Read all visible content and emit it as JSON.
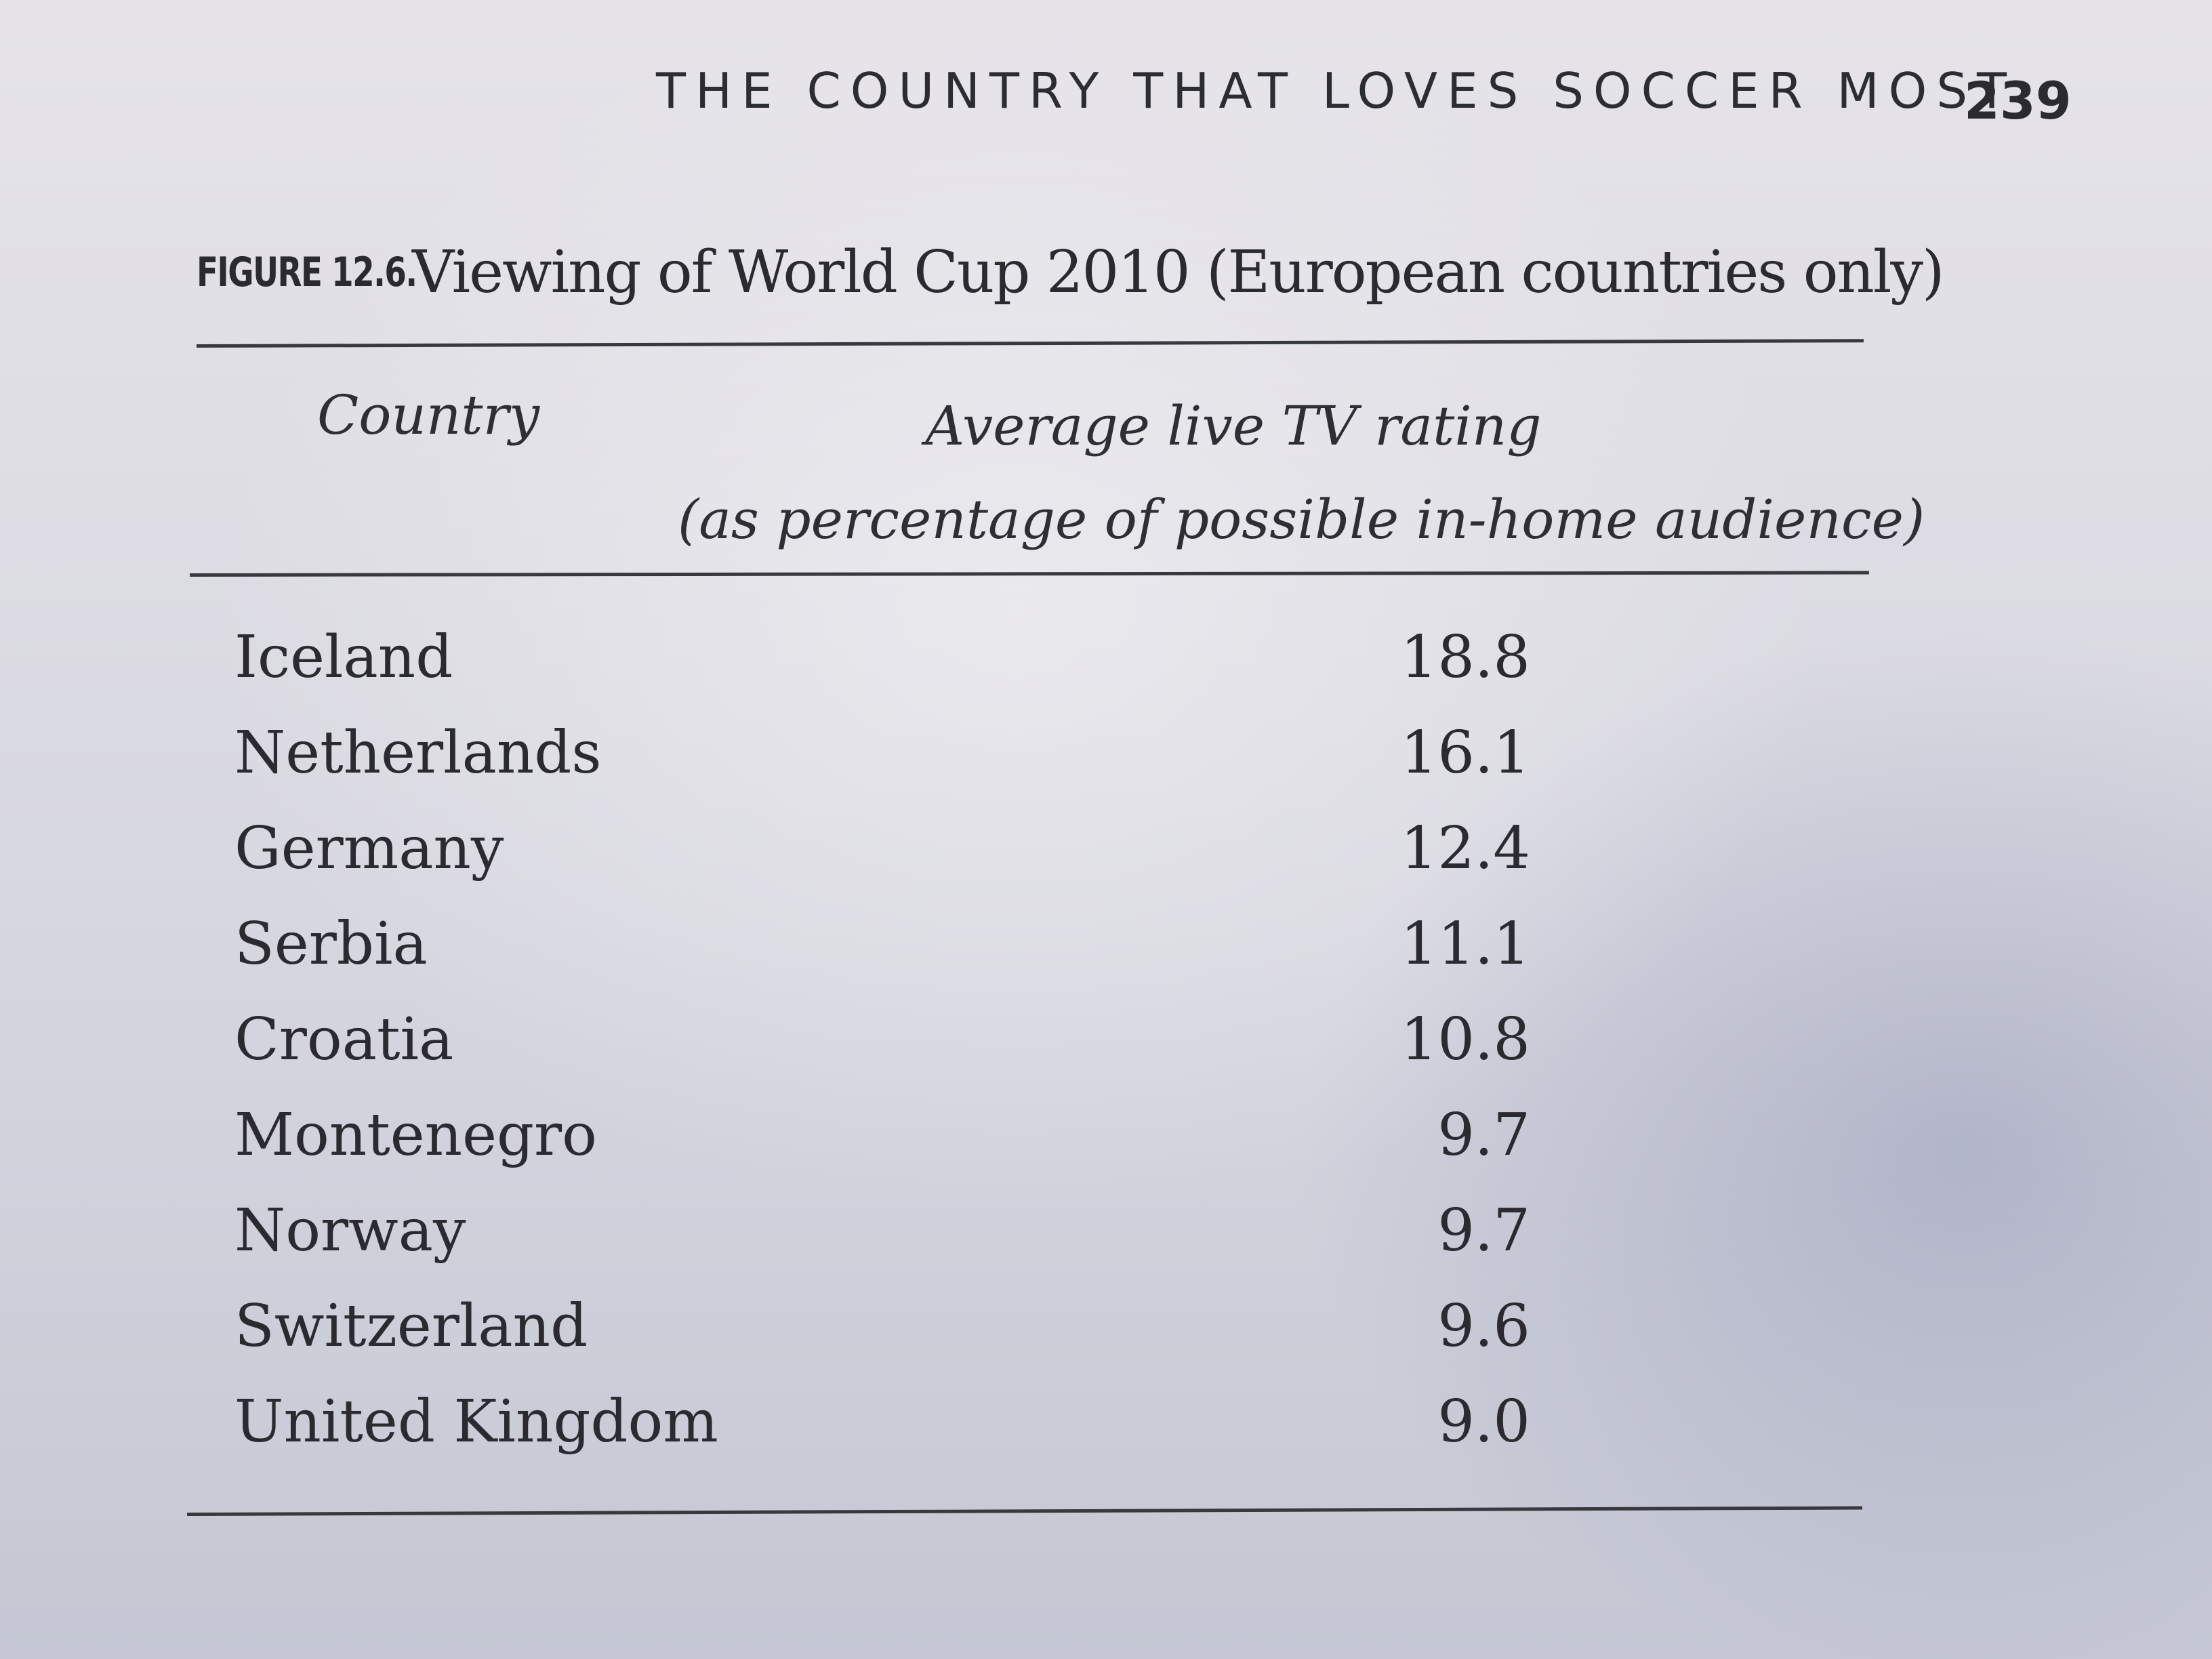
{
  "running_head": "THE COUNTRY THAT LOVES SOCCER MOST",
  "page_number": "239",
  "figure": {
    "label": "FIGURE 12.6.",
    "title": "Viewing of World Cup 2010 (European countries only)"
  },
  "table": {
    "headers": {
      "country": "Country",
      "rating_line1": "Average live TV rating",
      "rating_line2": "(as percentage of possible in-home audience)"
    },
    "rows": [
      {
        "country": "Iceland",
        "rating": "18.8"
      },
      {
        "country": "Netherlands",
        "rating": "16.1"
      },
      {
        "country": "Germany",
        "rating": "12.4"
      },
      {
        "country": "Serbia",
        "rating": "11.1"
      },
      {
        "country": "Croatia",
        "rating": "10.8"
      },
      {
        "country": "Montenegro",
        "rating": "9.7"
      },
      {
        "country": "Norway",
        "rating": "9.7"
      },
      {
        "country": "Switzerland",
        "rating": "9.6"
      },
      {
        "country": "United Kingdom",
        "rating": "9.0"
      }
    ]
  }
}
